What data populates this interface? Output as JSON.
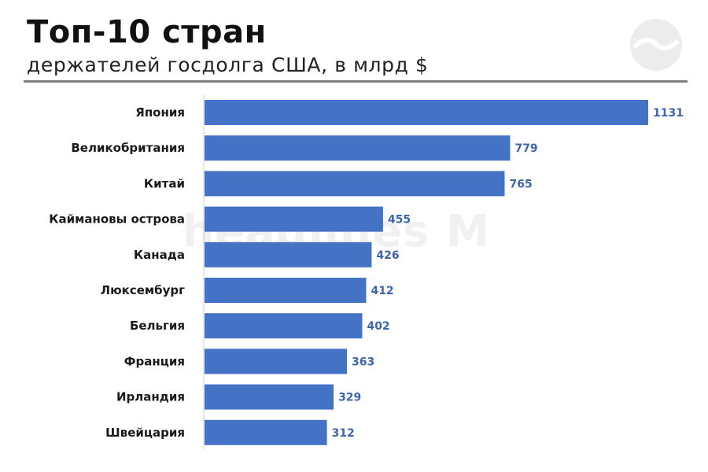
{
  "header": {
    "title": "Топ-10 стран",
    "subtitle": "держателей госдолга США, в млрд $"
  },
  "watermark": {
    "text": "headlines M"
  },
  "colors": {
    "bar": "#4472c4",
    "value_label": "#3d65ad",
    "axis": "#d0d0d0"
  },
  "chart_data": {
    "type": "bar",
    "orientation": "horizontal",
    "title": "Топ-10 стран",
    "subtitle": "держателей госдолга США, в млрд $",
    "categories": [
      "Япония",
      "Великобритания",
      "Китай",
      "Каймановы острова",
      "Канада",
      "Люксембург",
      "Бельгия",
      "Франция",
      "Ирландия",
      "Швейцария"
    ],
    "values": [
      1131,
      779,
      765,
      455,
      426,
      412,
      402,
      363,
      329,
      312
    ],
    "value_labels": [
      "1131",
      "779",
      "765",
      "455",
      "426",
      "412",
      "402",
      "363",
      "329",
      "312"
    ],
    "xlim": [
      0,
      1131
    ],
    "grid": false,
    "legend": "none"
  }
}
